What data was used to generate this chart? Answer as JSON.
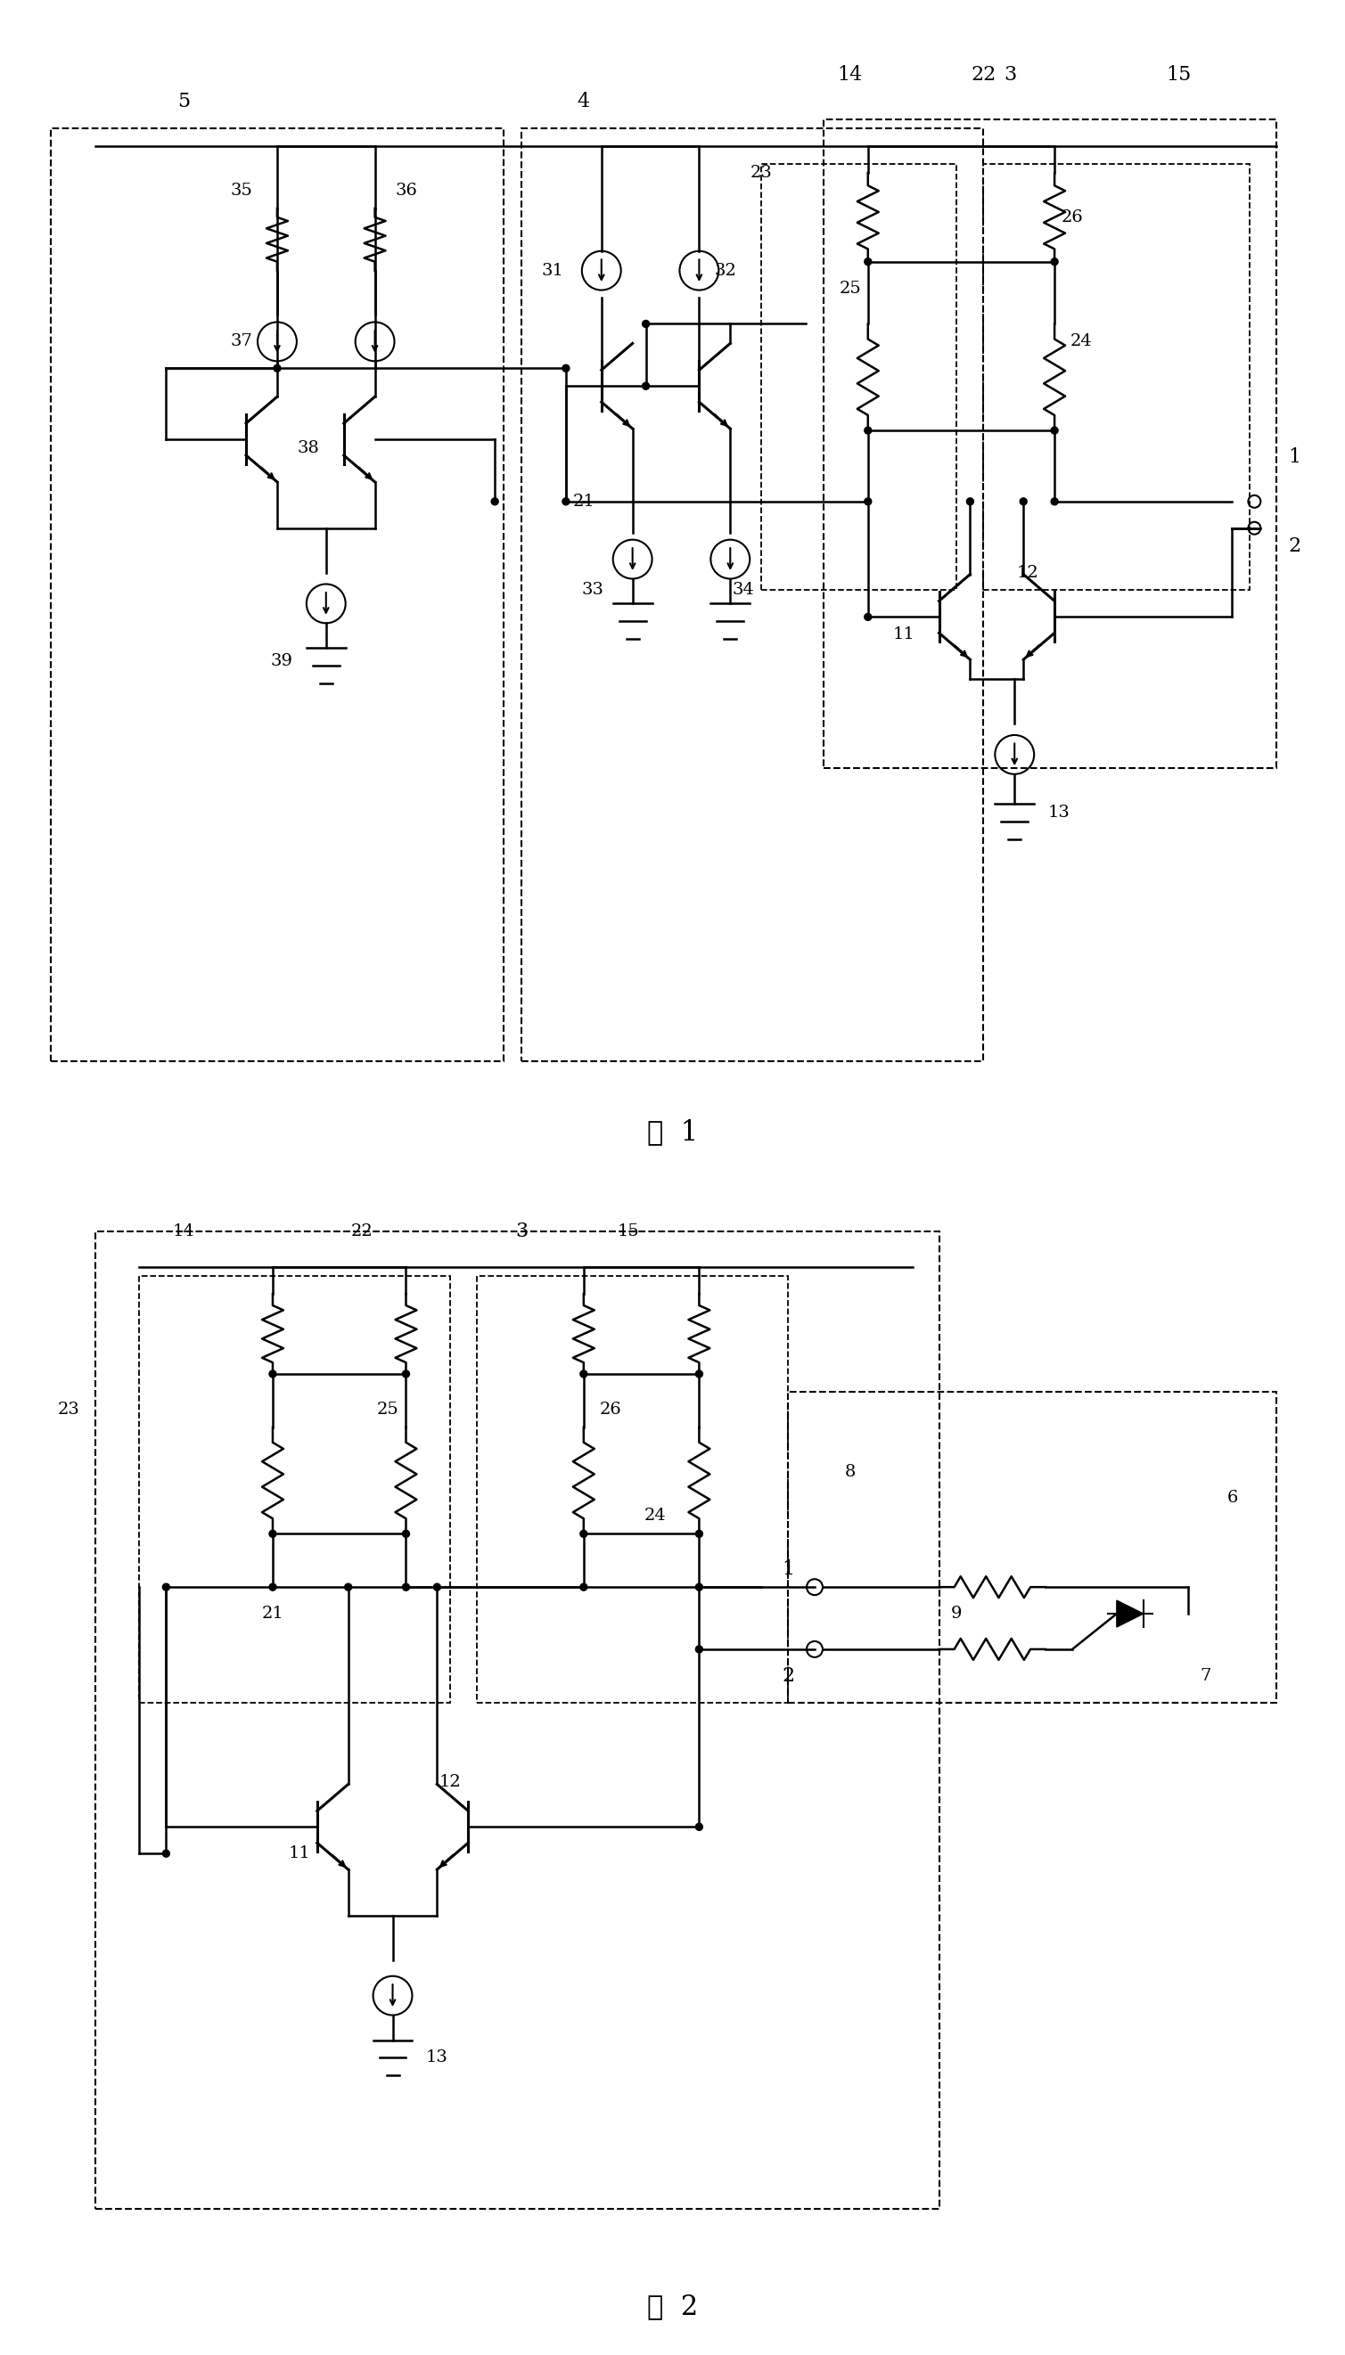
{
  "fig_width": 15.09,
  "fig_height": 26.43,
  "bg_color": "#ffffff",
  "line_color": "#000000",
  "title1": "图  1",
  "title2": "图  2",
  "font_size_label": 18,
  "font_size_title": 22
}
